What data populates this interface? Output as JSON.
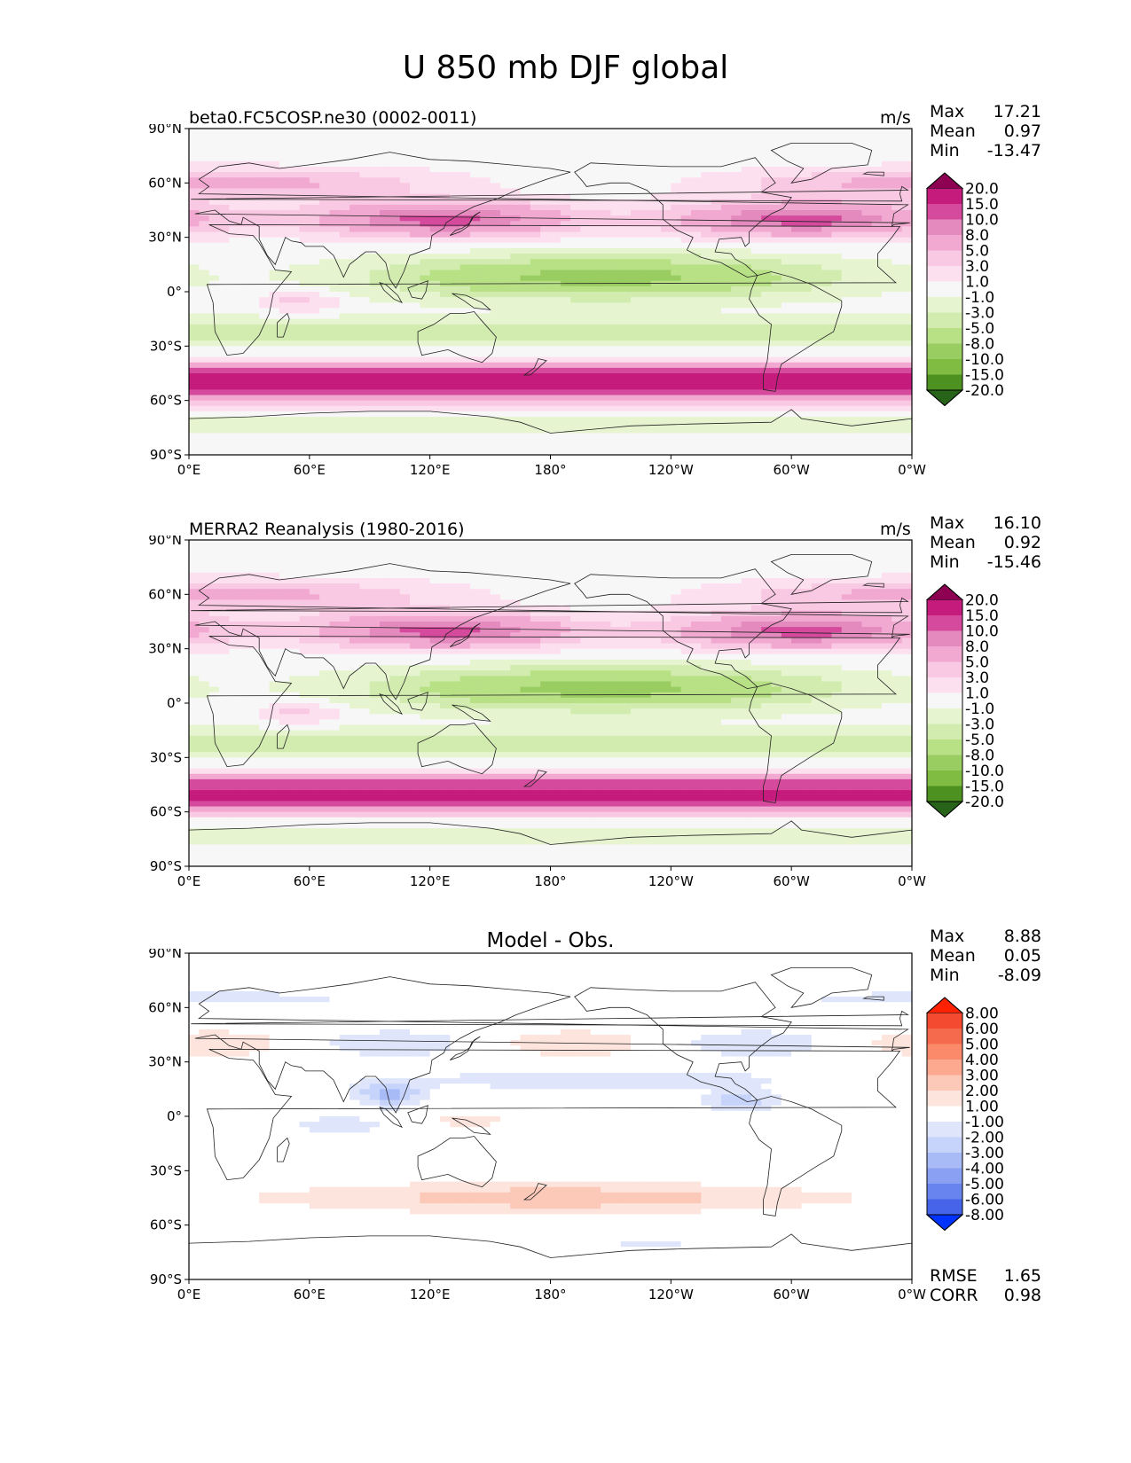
{
  "title": "U 850 mb DJF global",
  "colors": {
    "div_pos": [
      "#f7f7f7",
      "#fde0ef",
      "#f9c8e2",
      "#f1a9d1",
      "#e58abf",
      "#d64a9d",
      "#c51b7d",
      "#8e0152"
    ],
    "div_neg": [
      "#f7f7f7",
      "#e6f5d0",
      "#d2ecb0",
      "#b8e186",
      "#9acd61",
      "#7fbc41",
      "#4d9221",
      "#276419"
    ],
    "diff_pos": [
      "#ffffff",
      "#fde4dd",
      "#fcc8b8",
      "#fca98f",
      "#fb8a6b",
      "#f56a4c",
      "#f44a2f",
      "#ff2200"
    ],
    "diff_neg": [
      "#ffffff",
      "#dfe6fb",
      "#c6d3fa",
      "#a8bbf7",
      "#8aa1f3",
      "#6884ee",
      "#4664ea",
      "#0033ff"
    ]
  },
  "chart_data": [
    {
      "type": "heatmap",
      "panel": "test",
      "label": "beta0.FC5COSP.ne30 (0002-0011)",
      "units": "m/s",
      "stats": {
        "max_label": "Max",
        "max": "17.21",
        "mean_label": "Mean",
        "mean": "0.97",
        "min_label": "Min",
        "min": "-13.47"
      },
      "levels": [
        "20.0",
        "15.0",
        "10.0",
        "8.0",
        "5.0",
        "3.0",
        "1.0",
        "-1.0",
        "-3.0",
        "-5.0",
        "-8.0",
        "-10.0",
        "-15.0",
        "-20.0"
      ],
      "xticks": [
        "0°E",
        "60°E",
        "120°E",
        "180°",
        "120°W",
        "60°W",
        "0°W"
      ],
      "yticks": [
        "90°N",
        "60°N",
        "30°N",
        "0°",
        "30°S",
        "60°S",
        "90°S"
      ],
      "xlim": [
        0,
        360
      ],
      "ylim": [
        -90,
        90
      ]
    },
    {
      "type": "heatmap",
      "panel": "reference",
      "label": "MERRA2 Reanalysis (1980-2016)",
      "units": "m/s",
      "stats": {
        "max_label": "Max",
        "max": "16.10",
        "mean_label": "Mean",
        "mean": "0.92",
        "min_label": "Min",
        "min": "-15.46"
      },
      "levels": [
        "20.0",
        "15.0",
        "10.0",
        "8.0",
        "5.0",
        "3.0",
        "1.0",
        "-1.0",
        "-3.0",
        "-5.0",
        "-8.0",
        "-10.0",
        "-15.0",
        "-20.0"
      ],
      "xticks": [
        "0°E",
        "60°E",
        "120°E",
        "180°",
        "120°W",
        "60°W",
        "0°W"
      ],
      "yticks": [
        "90°N",
        "60°N",
        "30°N",
        "0°",
        "30°S",
        "60°S",
        "90°S"
      ],
      "xlim": [
        0,
        360
      ],
      "ylim": [
        -90,
        90
      ]
    },
    {
      "type": "heatmap",
      "panel": "difference",
      "title": "Model - Obs.",
      "stats": {
        "max_label": "Max",
        "max": "8.88",
        "mean_label": "Mean",
        "mean": "0.05",
        "min_label": "Min",
        "min": "-8.09"
      },
      "metrics": {
        "rmse_label": "RMSE",
        "rmse": "1.65",
        "corr_label": "CORR",
        "corr": "0.98"
      },
      "levels": [
        "8.00",
        "6.00",
        "5.00",
        "4.00",
        "3.00",
        "2.00",
        "1.00",
        "-1.00",
        "-2.00",
        "-3.00",
        "-4.00",
        "-5.00",
        "-6.00",
        "-8.00"
      ],
      "xticks": [
        "0°E",
        "60°E",
        "120°E",
        "180°",
        "120°W",
        "60°W",
        "0°W"
      ],
      "yticks": [
        "90°N",
        "60°N",
        "30°N",
        "0°",
        "30°S",
        "60°S",
        "90°S"
      ],
      "xlim": [
        0,
        360
      ],
      "ylim": [
        -90,
        90
      ]
    }
  ]
}
